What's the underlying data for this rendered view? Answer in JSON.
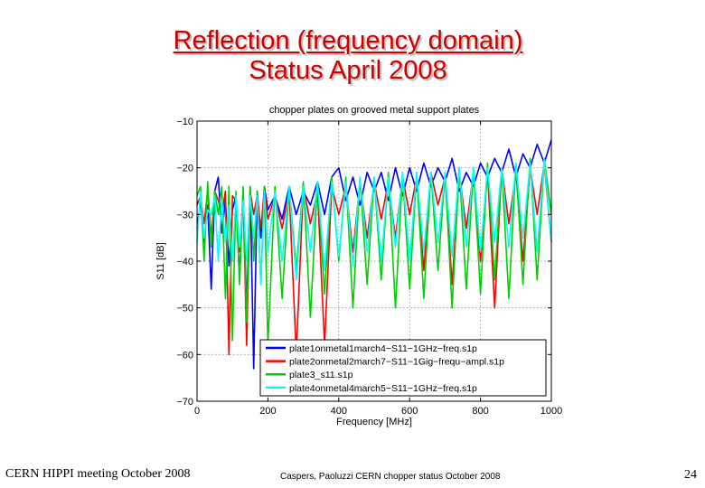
{
  "slide": {
    "title_line1": "Reflection (frequency domain)",
    "title_line2": "Status April 2008"
  },
  "footer": {
    "left": "CERN HIPPI meeting October 2008",
    "center": "Caspers, Paoluzzi CERN chopper status October 2008",
    "page_number": "24"
  },
  "chart_data": {
    "type": "line",
    "title": "chopper plates on grooved metal support plates",
    "xlabel": "Frequency [MHz]",
    "ylabel": "S11 [dB]",
    "xlim": [
      0,
      1000
    ],
    "ylim": [
      -70,
      -10
    ],
    "xticks": [
      0,
      200,
      400,
      600,
      800,
      1000
    ],
    "yticks": [
      -10,
      -20,
      -30,
      -40,
      -50,
      -60,
      -70
    ],
    "grid": true,
    "legend_position": "bottom-right",
    "series": [
      {
        "name": "plate1onmetal1march4−S11−1GHz−freq.s1p",
        "color": "#0000ff",
        "x": [
          0,
          10,
          20,
          30,
          40,
          50,
          60,
          70,
          80,
          90,
          100,
          110,
          120,
          130,
          140,
          150,
          160,
          170,
          180,
          190,
          200,
          220,
          240,
          260,
          280,
          300,
          320,
          340,
          360,
          380,
          400,
          420,
          440,
          460,
          480,
          500,
          520,
          540,
          560,
          580,
          600,
          620,
          640,
          660,
          680,
          700,
          720,
          740,
          760,
          780,
          800,
          820,
          840,
          860,
          880,
          900,
          920,
          940,
          960,
          980,
          1000
        ],
        "y": [
          -33,
          -27,
          -36,
          -28,
          -46,
          -25,
          -22,
          -34,
          -27,
          -41,
          -29,
          -26,
          -44,
          -25,
          -50,
          -24,
          -63,
          -25,
          -35,
          -24,
          -29,
          -26,
          -31,
          -24,
          -30,
          -25,
          -28,
          -23,
          -30,
          -22,
          -20,
          -27,
          -22,
          -28,
          -21,
          -25,
          -21,
          -27,
          -20,
          -26,
          -20,
          -25,
          -19,
          -24,
          -20,
          -23,
          -18,
          -25,
          -21,
          -24,
          -19,
          -22,
          -18,
          -21,
          -16,
          -22,
          -17,
          -20,
          -15,
          -19,
          -14
        ]
      },
      {
        "name": "plate2onmetal2march7−S11−1Gig−frequ−ampl.s1p",
        "color": "#ff0000",
        "x": [
          0,
          10,
          20,
          30,
          40,
          50,
          60,
          70,
          80,
          90,
          100,
          110,
          120,
          130,
          140,
          150,
          160,
          170,
          180,
          190,
          200,
          220,
          240,
          260,
          280,
          300,
          320,
          340,
          360,
          380,
          400,
          420,
          440,
          460,
          480,
          500,
          520,
          540,
          560,
          580,
          600,
          620,
          640,
          660,
          680,
          700,
          720,
          740,
          760,
          780,
          800,
          820,
          840,
          860,
          880,
          900,
          920,
          940,
          960,
          980,
          1000
        ],
        "y": [
          -28,
          -26,
          -32,
          -25,
          -35,
          -25,
          -27,
          -30,
          -25,
          -60,
          -26,
          -27,
          -38,
          -26,
          -58,
          -25,
          -30,
          -26,
          -33,
          -25,
          -31,
          -26,
          -33,
          -25,
          -60,
          -24,
          -32,
          -25,
          -58,
          -24,
          -30,
          -24,
          -38,
          -23,
          -35,
          -23,
          -31,
          -23,
          -35,
          -22,
          -30,
          -22,
          -42,
          -21,
          -28,
          -22,
          -45,
          -21,
          -33,
          -21,
          -40,
          -21,
          -50,
          -20,
          -32,
          -21,
          -40,
          -20,
          -30,
          -19,
          -36
        ]
      },
      {
        "name": "plate3_s11.s1p",
        "color": "#00d000",
        "x": [
          0,
          10,
          20,
          30,
          40,
          50,
          60,
          70,
          80,
          90,
          100,
          110,
          120,
          130,
          140,
          150,
          160,
          170,
          180,
          190,
          200,
          220,
          240,
          260,
          280,
          300,
          320,
          340,
          360,
          380,
          400,
          420,
          440,
          460,
          480,
          500,
          520,
          540,
          560,
          580,
          600,
          620,
          640,
          660,
          680,
          700,
          720,
          740,
          760,
          780,
          800,
          820,
          840,
          860,
          880,
          900,
          920,
          940,
          960,
          980,
          1000
        ],
        "y": [
          -26,
          -24,
          -40,
          -23,
          -37,
          -25,
          -30,
          -24,
          -48,
          -24,
          -57,
          -25,
          -45,
          -24,
          -53,
          -24,
          -40,
          -25,
          -45,
          -24,
          -58,
          -24,
          -48,
          -24,
          -42,
          -23,
          -52,
          -23,
          -47,
          -22,
          -40,
          -22,
          -50,
          -22,
          -45,
          -22,
          -44,
          -21,
          -50,
          -21,
          -46,
          -21,
          -48,
          -21,
          -42,
          -21,
          -50,
          -20,
          -46,
          -20,
          -47,
          -19,
          -44,
          -20,
          -48,
          -19,
          -45,
          -18,
          -44,
          -18,
          -30
        ]
      },
      {
        "name": "plate4onmetal4march5−S11−1GHz−freq.s1p",
        "color": "#00ffff",
        "x": [
          0,
          10,
          20,
          30,
          40,
          50,
          60,
          70,
          80,
          90,
          100,
          110,
          120,
          130,
          140,
          150,
          160,
          170,
          180,
          190,
          200,
          220,
          240,
          260,
          280,
          300,
          320,
          340,
          360,
          380,
          400,
          420,
          440,
          460,
          480,
          500,
          520,
          540,
          560,
          580,
          600,
          620,
          640,
          660,
          680,
          700,
          720,
          740,
          760,
          780,
          800,
          820,
          840,
          860,
          880,
          900,
          920,
          940,
          960,
          980,
          1000
        ],
        "y": [
          -36,
          -25,
          -35,
          -29,
          -30,
          -26,
          -40,
          -27,
          -36,
          -28,
          -40,
          -26,
          -37,
          -27,
          -40,
          -26,
          -35,
          -26,
          -45,
          -25,
          -38,
          -25,
          -40,
          -24,
          -44,
          -24,
          -38,
          -23,
          -42,
          -23,
          -39,
          -23,
          -41,
          -22,
          -38,
          -22,
          -40,
          -22,
          -37,
          -21,
          -40,
          -21,
          -38,
          -21,
          -36,
          -21,
          -39,
          -20,
          -37,
          -20,
          -38,
          -20,
          -36,
          -20,
          -37,
          -19,
          -35,
          -19,
          -38,
          -18,
          -36
        ]
      }
    ]
  }
}
